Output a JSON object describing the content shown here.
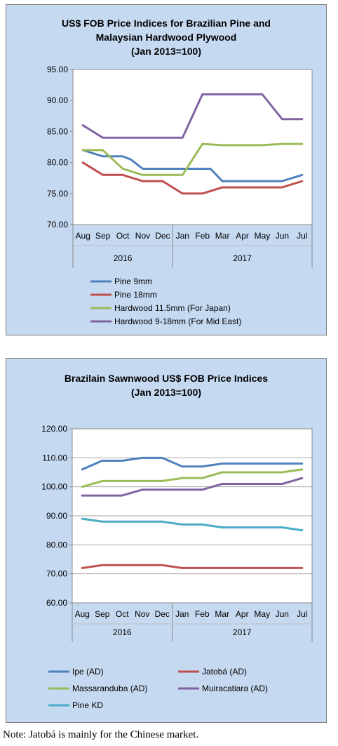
{
  "chart_data": [
    {
      "type": "line",
      "title_lines": [
        "US$ FOB Price Indices for Brazilian  Pine and",
        "Malaysian Hardwood Plywood",
        "(Jan 2013=100)"
      ],
      "categories": [
        "Aug",
        "Sep",
        "Oct",
        "Nov",
        "Dec",
        "Jan",
        "Feb",
        "Mar",
        "Apr",
        "May",
        "Jun",
        "Jul"
      ],
      "year_groups": [
        {
          "label": "2016",
          "span": 5
        },
        {
          "label": "2017",
          "span": 7
        }
      ],
      "y_ticks": [
        "70.00",
        "75.00",
        "80.00",
        "85.00",
        "90.00",
        "95.00"
      ],
      "ylim": [
        70,
        95
      ],
      "grid": false,
      "legend_position": "bottom",
      "series": [
        {
          "name": "Pine 9mm",
          "color": "#4f81bd",
          "x": [
            0,
            1,
            2,
            2.4,
            3,
            4,
            5,
            6,
            6.4,
            7,
            8,
            9,
            10,
            11
          ],
          "values": [
            82,
            81,
            81,
            80.5,
            79,
            79,
            79,
            79,
            79,
            77,
            77,
            77,
            77,
            78
          ]
        },
        {
          "name": "Pine 18mm",
          "color": "#c0504d",
          "x": [
            0,
            1,
            2,
            3,
            4,
            5,
            6,
            7,
            8,
            9,
            10,
            11
          ],
          "values": [
            80,
            78,
            78,
            77,
            77,
            75,
            75,
            76,
            76,
            76,
            76,
            77
          ]
        },
        {
          "name": "Hardwood 11.5mm (For Japan)",
          "color": "#9bbb59",
          "x": [
            0,
            1,
            2,
            3,
            4,
            5,
            6,
            7,
            8,
            9,
            10,
            11
          ],
          "values": [
            82,
            82,
            79,
            78,
            78,
            78,
            83,
            82.8,
            82.8,
            82.8,
            83,
            83
          ]
        },
        {
          "name": "Hardwood 9-18mm (For Mid East)",
          "color": "#8064a2",
          "x": [
            0,
            1,
            2,
            3,
            4,
            5,
            6,
            7,
            8,
            9,
            10,
            11
          ],
          "values": [
            86,
            84,
            84,
            84,
            84,
            84,
            91,
            91,
            91,
            91,
            87,
            87
          ]
        }
      ]
    },
    {
      "type": "line",
      "title_lines": [
        "Brazilain Sawnwood US$ FOB Price Indices",
        "(Jan 2013=100)"
      ],
      "categories": [
        "Aug",
        "Sep",
        "Oct",
        "Nov",
        "Dec",
        "Jan",
        "Feb",
        "Mar",
        "Apr",
        "May",
        "Jun",
        "Jul"
      ],
      "year_groups": [
        {
          "label": "2016",
          "span": 5
        },
        {
          "label": "2017",
          "span": 7
        }
      ],
      "y_ticks": [
        "60.00",
        "70.00",
        "80.00",
        "90.00",
        "100.00",
        "110.00",
        "120.00"
      ],
      "ylim": [
        60,
        120
      ],
      "grid": true,
      "legend_position": "bottom",
      "series": [
        {
          "name": "Ipe (AD)",
          "color": "#4f81bd",
          "x": [
            0,
            1,
            2,
            3,
            4,
            5,
            6,
            7,
            8,
            9,
            10,
            11
          ],
          "values": [
            106,
            109,
            109,
            110,
            110,
            107,
            107,
            108,
            108,
            108,
            108,
            108
          ]
        },
        {
          "name": "Jatobá (AD)",
          "color": "#c0504d",
          "x": [
            0,
            1,
            2,
            3,
            4,
            5,
            6,
            7,
            8,
            9,
            10,
            11
          ],
          "values": [
            72,
            73,
            73,
            73,
            73,
            72,
            72,
            72,
            72,
            72,
            72,
            72
          ]
        },
        {
          "name": "Massaranduba (AD)",
          "color": "#9bbb59",
          "x": [
            0,
            1,
            2,
            3,
            4,
            5,
            6,
            7,
            8,
            9,
            10,
            11
          ],
          "values": [
            100,
            102,
            102,
            102,
            102,
            103,
            103,
            105,
            105,
            105,
            105,
            106
          ]
        },
        {
          "name": "Muiracatiara (AD)",
          "color": "#8064a2",
          "x": [
            0,
            1,
            2,
            3,
            4,
            5,
            6,
            7,
            8,
            9,
            10,
            11
          ],
          "values": [
            97,
            97,
            97,
            99,
            99,
            99,
            99,
            101,
            101,
            101,
            101,
            103
          ]
        },
        {
          "name": "Pine KD",
          "color": "#4bacc6",
          "x": [
            0,
            1,
            2,
            3,
            4,
            5,
            6,
            7,
            8,
            9,
            10,
            11
          ],
          "values": [
            89,
            88,
            88,
            88,
            88,
            87,
            87,
            86,
            86,
            86,
            86,
            85
          ]
        }
      ]
    }
  ],
  "note": "Note: Jatobá is mainly for the Chinese market."
}
